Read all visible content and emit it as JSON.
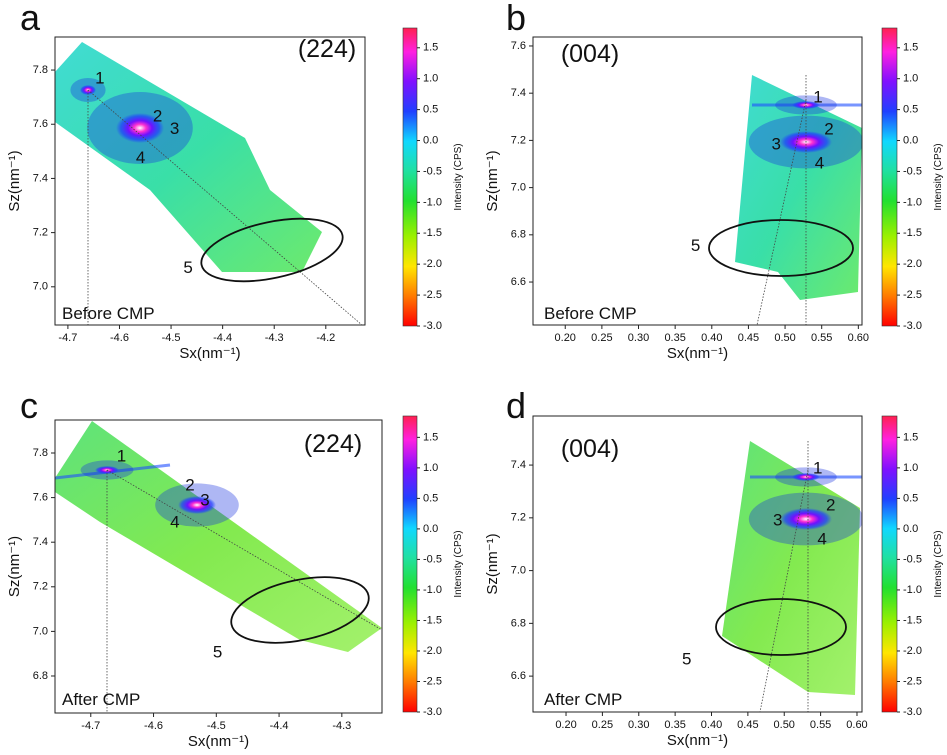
{
  "chart_data": [
    {
      "type": "heatmap",
      "panel_label": "a",
      "reflection": "(224)",
      "annotation": "Before CMP",
      "x_label": "Sx(nm⁻¹)",
      "y_label": "Sz(nm⁻¹)",
      "xlim": [
        -4.725,
        -4.124
      ],
      "xticks": [
        -4.7,
        -4.6,
        -4.5,
        -4.4,
        -4.3,
        -4.2
      ],
      "ylim": [
        6.859,
        7.922
      ],
      "yticks": [
        {
          "value": 7,
          "label": "7.0"
        },
        7.2,
        7.4,
        7.6,
        7.8
      ],
      "peaks": [
        {
          "label": "1",
          "x": -4.638,
          "y": 7.767
        },
        {
          "label": "2",
          "x": -4.526,
          "y": 7.626
        },
        {
          "label": "3",
          "x": -4.493,
          "y": 7.581
        },
        {
          "label": "4",
          "x": -4.559,
          "y": 7.474
        },
        {
          "label": "5",
          "x": -4.467,
          "y": 7.067
        }
      ],
      "colorbar": {
        "label": "Intensity (CPS)",
        "clim": [
          -3.0,
          1.82
        ],
        "ticks": [
          1.5,
          {
            "value": 1,
            "label": "1.0"
          },
          0.5,
          {
            "value": 0,
            "label": "0.0"
          },
          -0.5,
          {
            "value": -1,
            "label": "-1.0"
          },
          -1.5,
          {
            "value": -2,
            "label": "-2.0"
          },
          -2.5,
          {
            "value": -3,
            "label": "-3.0"
          }
        ]
      }
    },
    {
      "type": "heatmap",
      "panel_label": "b",
      "reflection": "(004)",
      "annotation": "Before CMP",
      "x_label": "Sx(nm⁻¹)",
      "y_label": "Sz(nm⁻¹)",
      "xlim": [
        0.156,
        0.605
      ],
      "xticks": [
        {
          "value": 0.2,
          "label": "0.20"
        },
        0.25,
        {
          "value": 0.3,
          "label": "0.30"
        },
        0.35,
        {
          "value": 0.4,
          "label": "0.40"
        },
        0.45,
        {
          "value": 0.5,
          "label": "0.50"
        },
        0.55,
        {
          "value": 0.6,
          "label": "0.60"
        }
      ],
      "ylim": [
        6.418,
        7.638
      ],
      "yticks": [
        6.6,
        6.8,
        {
          "value": 7,
          "label": "7.0"
        },
        7.2,
        7.4,
        7.6
      ],
      "peaks": [
        {
          "label": "1",
          "x": 0.545,
          "y": 7.38
        },
        {
          "label": "2",
          "x": 0.56,
          "y": 7.244
        },
        {
          "label": "3",
          "x": 0.488,
          "y": 7.18
        },
        {
          "label": "4",
          "x": 0.547,
          "y": 7.1
        },
        {
          "label": "5",
          "x": 0.378,
          "y": 6.75
        }
      ],
      "colorbar": {
        "label": "Intensity (CPS)",
        "clim": [
          -3.0,
          1.82
        ],
        "ticks": [
          1.5,
          {
            "value": 1,
            "label": "1.0"
          },
          0.5,
          {
            "value": 0,
            "label": "0.0"
          },
          -0.5,
          {
            "value": -1,
            "label": "-1.0"
          },
          -1.5,
          {
            "value": -2,
            "label": "-2.0"
          },
          -2.5,
          {
            "value": -3,
            "label": "-3.0"
          }
        ]
      }
    },
    {
      "type": "heatmap",
      "panel_label": "c",
      "reflection": "(224)",
      "annotation": "After CMP",
      "x_label": "Sx(nm⁻¹)",
      "y_label": "Sz(nm⁻¹)",
      "xlim": [
        -4.757,
        -4.236
      ],
      "xticks": [
        -4.7,
        -4.6,
        -4.5,
        -4.4,
        -4.3
      ],
      "ylim": [
        6.634,
        7.948
      ],
      "yticks": [
        6.8,
        {
          "value": 7,
          "label": "7.0"
        },
        7.2,
        7.4,
        7.6,
        7.8
      ],
      "peaks": [
        {
          "label": "1",
          "x": -4.651,
          "y": 7.782
        },
        {
          "label": "2",
          "x": -4.542,
          "y": 7.652
        },
        {
          "label": "3",
          "x": -4.518,
          "y": 7.585
        },
        {
          "label": "4",
          "x": -4.566,
          "y": 7.486
        },
        {
          "label": "5",
          "x": -4.498,
          "y": 6.903
        }
      ],
      "colorbar": {
        "label": "Intensity (CPS)",
        "clim": [
          -3.0,
          1.85
        ],
        "ticks": [
          1.5,
          {
            "value": 1,
            "label": "1.0"
          },
          0.5,
          {
            "value": 0,
            "label": "0.0"
          },
          -0.5,
          {
            "value": -1,
            "label": "-1.0"
          },
          -1.5,
          {
            "value": -2,
            "label": "-2.0"
          },
          -2.5,
          {
            "value": -3,
            "label": "-3.0"
          }
        ]
      }
    },
    {
      "type": "heatmap",
      "panel_label": "d",
      "reflection": "(004)",
      "annotation": "After CMP",
      "x_label": "Sx(nm⁻¹)",
      "y_label": "Sz(nm⁻¹)",
      "xlim": [
        0.1546,
        0.6069
      ],
      "xticks": [
        {
          "value": 0.2,
          "label": "0.20"
        },
        0.25,
        {
          "value": 0.3,
          "label": "0.30"
        },
        0.35,
        {
          "value": 0.4,
          "label": "0.40"
        },
        0.45,
        {
          "value": 0.5,
          "label": "0.50"
        },
        0.55,
        {
          "value": 0.6,
          "label": "0.60"
        }
      ],
      "ylim": [
        6.464,
        7.586
      ],
      "yticks": [
        6.6,
        6.8,
        {
          "value": 7,
          "label": "7.0"
        },
        7.2,
        7.4
      ],
      "peaks": [
        {
          "label": "1",
          "x": 0.546,
          "y": 7.385
        },
        {
          "label": "2",
          "x": 0.564,
          "y": 7.245
        },
        {
          "label": "3",
          "x": 0.491,
          "y": 7.188
        },
        {
          "label": "4",
          "x": 0.552,
          "y": 7.116
        },
        {
          "label": "5",
          "x": 0.366,
          "y": 6.661
        }
      ],
      "colorbar": {
        "label": "Intensity (CPS)",
        "clim": [
          -3.0,
          1.85
        ],
        "ticks": [
          1.5,
          {
            "value": 1,
            "label": "1.0"
          },
          0.5,
          {
            "value": 0,
            "label": "0.0"
          },
          -0.5,
          {
            "value": -1,
            "label": "-1.0"
          },
          -1.5,
          {
            "value": -2,
            "label": "-2.0"
          },
          -2.5,
          {
            "value": -3,
            "label": "-3.0"
          }
        ]
      }
    }
  ]
}
